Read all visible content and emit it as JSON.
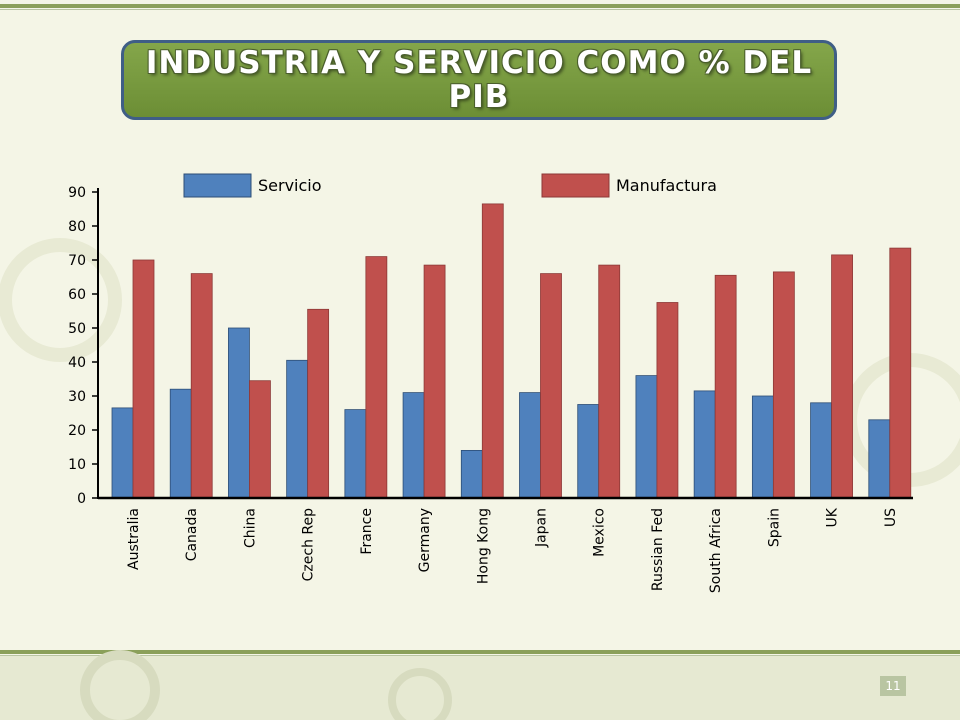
{
  "slide": {
    "title": "INDUSTRIA Y SERVICIO COMO % DEL PIB",
    "number": "11"
  },
  "colors": {
    "servicio": "#4f81bd",
    "manufactura": "#c0504d",
    "title_fill": "#76963e",
    "title_border": "#3f5e86",
    "band": "#8ba05a"
  },
  "chart_data": {
    "type": "bar",
    "title": "",
    "xlabel": "",
    "ylabel": "",
    "ylim": [
      0,
      90
    ],
    "yticks": [
      0,
      10,
      20,
      30,
      40,
      50,
      60,
      70,
      80,
      90
    ],
    "grid": false,
    "legend_position": "top",
    "categories": [
      "Australia",
      "Canada",
      "China",
      "Czech Rep",
      "France",
      "Germany",
      "Hong Kong",
      "Japan",
      "Mexico",
      "Russian Fed",
      "South Africa",
      "Spain",
      "UK",
      "US"
    ],
    "series": [
      {
        "name": "Servicio",
        "values": [
          26.5,
          32,
          50,
          40.5,
          26,
          31,
          14,
          31,
          27.5,
          36,
          31.5,
          30,
          28,
          23
        ]
      },
      {
        "name": "Manufactura",
        "values": [
          70,
          66,
          34.5,
          55.5,
          71,
          68.5,
          86.5,
          66,
          68.5,
          57.5,
          65.5,
          66.5,
          71.5,
          73.5
        ]
      }
    ]
  }
}
